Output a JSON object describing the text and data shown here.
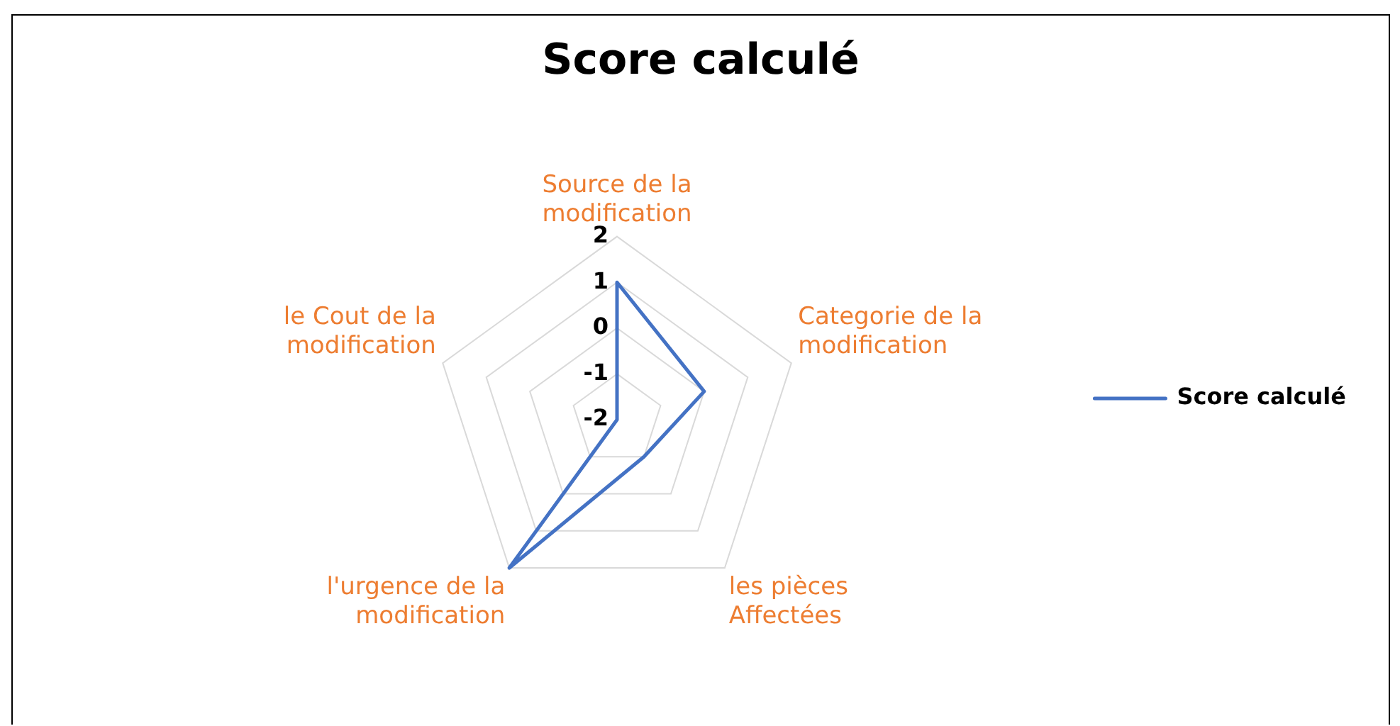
{
  "chart_data": {
    "type": "radar",
    "title": "Score calculé",
    "categories": [
      "Source de la modification",
      "Categorie de la modification",
      "les pièces Affectées",
      "l'urgence de la modification",
      "le Cout de la modification"
    ],
    "series": [
      {
        "name": "Score calculé",
        "color": "#4472c4",
        "values": [
          1,
          0,
          -1,
          2,
          -2
        ]
      }
    ],
    "ylim": [
      -2,
      2
    ],
    "yticks": [
      -2,
      -1,
      0,
      1,
      2
    ],
    "grid": true,
    "legend": "right",
    "marker": "none"
  }
}
